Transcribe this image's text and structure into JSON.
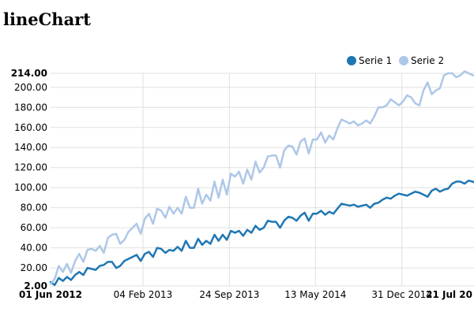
{
  "page": {
    "title": "lineChart"
  },
  "chart_data": {
    "type": "line",
    "title": "",
    "xlabel": "",
    "ylabel": "",
    "ylim": [
      2,
      214
    ],
    "xlim": [
      "2012-06-01",
      "2015-07-21"
    ],
    "y_ticks": [
      "2.00",
      "20.00",
      "40.00",
      "60.00",
      "80.00",
      "100.00",
      "120.00",
      "140.00",
      "160.00",
      "180.00",
      "200.00",
      "214.00"
    ],
    "x_ticks": [
      {
        "date": "2012-06-01",
        "label": "01 Jun 2012",
        "bold": true
      },
      {
        "date": "2013-02-04",
        "label": "04 Feb 2013",
        "bold": false
      },
      {
        "date": "2013-09-24",
        "label": "24 Sep 2013",
        "bold": false
      },
      {
        "date": "2014-05-13",
        "label": "13 May 2014",
        "bold": false
      },
      {
        "date": "2014-12-31",
        "label": "31 Dec 2014",
        "bold": false
      },
      {
        "date": "2015-07-21",
        "label": "21 Jul 20",
        "bold": true
      }
    ],
    "grid": true,
    "legend": {
      "position": "top-right"
    },
    "series": [
      {
        "name": "Serie 1",
        "color": "#1f77b4",
        "x": [
          "2012-06-01",
          "2012-06-12",
          "2012-06-23",
          "2012-07-04",
          "2012-07-15",
          "2012-07-26",
          "2012-08-06",
          "2012-08-17",
          "2012-08-28",
          "2012-09-08",
          "2012-09-19",
          "2012-09-30",
          "2012-10-11",
          "2012-10-22",
          "2012-11-02",
          "2012-11-13",
          "2012-11-24",
          "2012-12-05",
          "2012-12-16",
          "2012-12-27",
          "2013-01-07",
          "2013-01-18",
          "2013-01-29",
          "2013-02-09",
          "2013-02-20",
          "2013-03-03",
          "2013-03-14",
          "2013-03-25",
          "2013-04-05",
          "2013-04-16",
          "2013-04-27",
          "2013-05-08",
          "2013-05-19",
          "2013-05-30",
          "2013-06-10",
          "2013-06-21",
          "2013-07-02",
          "2013-07-13",
          "2013-07-24",
          "2013-08-04",
          "2013-08-15",
          "2013-08-26",
          "2013-09-06",
          "2013-09-17",
          "2013-09-28",
          "2013-10-09",
          "2013-10-20",
          "2013-10-31",
          "2013-11-11",
          "2013-11-22",
          "2013-12-03",
          "2013-12-14",
          "2013-12-25",
          "2014-01-05",
          "2014-01-16",
          "2014-01-27",
          "2014-02-07",
          "2014-02-18",
          "2014-03-01",
          "2014-03-12",
          "2014-03-23",
          "2014-04-03",
          "2014-04-14",
          "2014-04-25",
          "2014-05-06",
          "2014-05-17",
          "2014-05-28",
          "2014-06-08",
          "2014-06-19",
          "2014-06-30",
          "2014-07-11",
          "2014-07-22",
          "2014-08-02",
          "2014-08-13",
          "2014-08-24",
          "2014-09-04",
          "2014-09-15",
          "2014-09-26",
          "2014-10-07",
          "2014-10-18",
          "2014-10-29",
          "2014-11-09",
          "2014-11-20",
          "2014-12-01",
          "2014-12-12",
          "2014-12-23",
          "2015-01-03",
          "2015-01-14",
          "2015-01-25",
          "2015-02-05",
          "2015-02-16",
          "2015-02-27",
          "2015-03-10",
          "2015-03-21",
          "2015-04-01",
          "2015-04-12",
          "2015-04-23",
          "2015-05-04",
          "2015-05-15",
          "2015-05-26",
          "2015-06-06",
          "2015-06-17",
          "2015-06-28",
          "2015-07-09",
          "2015-07-21"
        ],
        "values": [
          6,
          3,
          10,
          7,
          11,
          8,
          13,
          16,
          13,
          20,
          19,
          18,
          22,
          23,
          26,
          26,
          20,
          22,
          27,
          29,
          31,
          33,
          27,
          34,
          36,
          31,
          40,
          39,
          35,
          38,
          37,
          41,
          37,
          47,
          40,
          40,
          49,
          43,
          47,
          44,
          53,
          47,
          53,
          48,
          57,
          55,
          57,
          52,
          58,
          55,
          62,
          58,
          60,
          67,
          66,
          66,
          60,
          67,
          71,
          70,
          67,
          72,
          75,
          67,
          74,
          74,
          77,
          73,
          76,
          74,
          79,
          84,
          83,
          82,
          83,
          81,
          82,
          83,
          80,
          84,
          85,
          88,
          90,
          89,
          92,
          94,
          93,
          92,
          94,
          96,
          95,
          93,
          91,
          97,
          99,
          96,
          98,
          99,
          104,
          106,
          106,
          104,
          107,
          106,
          104
        ]
      },
      {
        "name": "Serie 2",
        "color": "#aec7e8",
        "x": [
          "2012-06-01",
          "2012-06-12",
          "2012-06-23",
          "2012-07-04",
          "2012-07-15",
          "2012-07-26",
          "2012-08-06",
          "2012-08-17",
          "2012-08-28",
          "2012-09-08",
          "2012-09-19",
          "2012-09-30",
          "2012-10-11",
          "2012-10-22",
          "2012-11-02",
          "2012-11-13",
          "2012-11-24",
          "2012-12-05",
          "2012-12-16",
          "2012-12-27",
          "2013-01-07",
          "2013-01-18",
          "2013-01-29",
          "2013-02-09",
          "2013-02-20",
          "2013-03-03",
          "2013-03-14",
          "2013-03-25",
          "2013-04-05",
          "2013-04-16",
          "2013-04-27",
          "2013-05-08",
          "2013-05-19",
          "2013-05-30",
          "2013-06-10",
          "2013-06-21",
          "2013-07-02",
          "2013-07-13",
          "2013-07-24",
          "2013-08-04",
          "2013-08-15",
          "2013-08-26",
          "2013-09-06",
          "2013-09-17",
          "2013-09-28",
          "2013-10-09",
          "2013-10-20",
          "2013-10-31",
          "2013-11-11",
          "2013-11-22",
          "2013-12-03",
          "2013-12-14",
          "2013-12-25",
          "2014-01-05",
          "2014-01-16",
          "2014-01-27",
          "2014-02-07",
          "2014-02-18",
          "2014-03-01",
          "2014-03-12",
          "2014-03-23",
          "2014-04-03",
          "2014-04-14",
          "2014-04-25",
          "2014-05-06",
          "2014-05-17",
          "2014-05-28",
          "2014-06-08",
          "2014-06-19",
          "2014-06-30",
          "2014-07-11",
          "2014-07-22",
          "2014-08-02",
          "2014-08-13",
          "2014-08-24",
          "2014-09-04",
          "2014-09-15",
          "2014-09-26",
          "2014-10-07",
          "2014-10-18",
          "2014-10-29",
          "2014-11-09",
          "2014-11-20",
          "2014-12-01",
          "2014-12-12",
          "2014-12-23",
          "2015-01-03",
          "2015-01-14",
          "2015-01-25",
          "2015-02-05",
          "2015-02-16",
          "2015-02-27",
          "2015-03-10",
          "2015-03-21",
          "2015-04-01",
          "2015-04-12",
          "2015-04-23",
          "2015-05-04",
          "2015-05-15",
          "2015-05-26",
          "2015-06-06",
          "2015-06-17",
          "2015-06-28",
          "2015-07-09",
          "2015-07-21"
        ],
        "values": [
          4,
          9,
          22,
          16,
          24,
          15,
          27,
          34,
          26,
          38,
          39,
          37,
          42,
          35,
          50,
          53,
          54,
          44,
          48,
          56,
          60,
          64,
          54,
          69,
          74,
          64,
          79,
          77,
          70,
          81,
          74,
          80,
          74,
          91,
          80,
          80,
          99,
          84,
          93,
          87,
          106,
          90,
          108,
          93,
          114,
          111,
          116,
          104,
          118,
          108,
          126,
          115,
          120,
          131,
          132,
          132,
          120,
          137,
          142,
          141,
          133,
          146,
          149,
          134,
          148,
          148,
          155,
          145,
          152,
          148,
          159,
          168,
          166,
          164,
          166,
          162,
          164,
          167,
          164,
          171,
          180,
          180,
          182,
          188,
          185,
          182,
          186,
          192,
          190,
          184,
          182,
          197,
          205,
          193,
          197,
          199,
          212,
          214,
          214,
          210,
          212,
          216,
          214,
          212,
          211
        ]
      }
    ]
  }
}
